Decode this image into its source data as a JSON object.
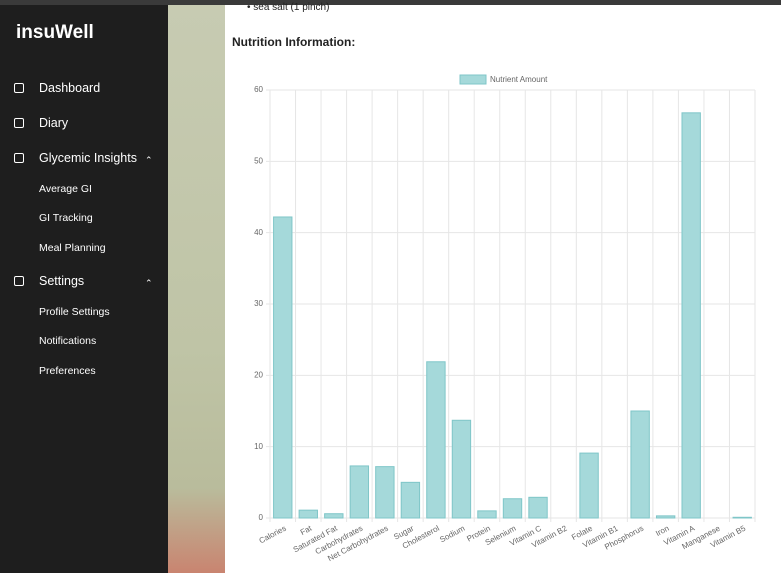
{
  "sidebar": {
    "brand": "insuWell",
    "items": [
      {
        "label": "Dashboard",
        "level": 0
      },
      {
        "label": "Diary",
        "level": 0
      },
      {
        "label": "Glycemic Insights",
        "level": 0
      },
      {
        "label": "Average GI",
        "level": 1
      },
      {
        "label": "GI Tracking",
        "level": 1
      },
      {
        "label": "Meal Planning",
        "level": 1
      },
      {
        "label": "Settings",
        "level": 0
      },
      {
        "label": "Profile Settings",
        "level": 1
      },
      {
        "label": "Notifications",
        "level": 1
      },
      {
        "label": "Preferences",
        "level": 1
      }
    ]
  },
  "content": {
    "list_item": "sea salt (1 pinch)",
    "heading": "Nutrition Information:"
  },
  "chart_data": {
    "type": "bar",
    "categories": [
      "Calories",
      "Fat",
      "Saturated Fat",
      "Carbohydrates",
      "Net Carbohydrates",
      "Sugar",
      "Cholesterol",
      "Sodium",
      "Protein",
      "Selenium",
      "Vitamin C",
      "Vitamin B2",
      "Folate",
      "Vitamin B1",
      "Phosphorus",
      "Iron",
      "Vitamin A",
      "Manganese",
      "Vitamin B5"
    ],
    "series": [
      {
        "name": "Nutrient Amount",
        "color": "#a5d9da",
        "values": [
          42.2,
          1.1,
          0.6,
          7.3,
          7.2,
          5.0,
          21.9,
          13.7,
          1.0,
          2.7,
          2.9,
          0,
          9.1,
          0,
          15.0,
          0.3,
          56.8,
          0,
          0.1
        ]
      }
    ],
    "ylim": [
      0,
      60
    ],
    "yticks": [
      0,
      10,
      20,
      30,
      40,
      50,
      60
    ],
    "grid": true,
    "legend": "top"
  }
}
